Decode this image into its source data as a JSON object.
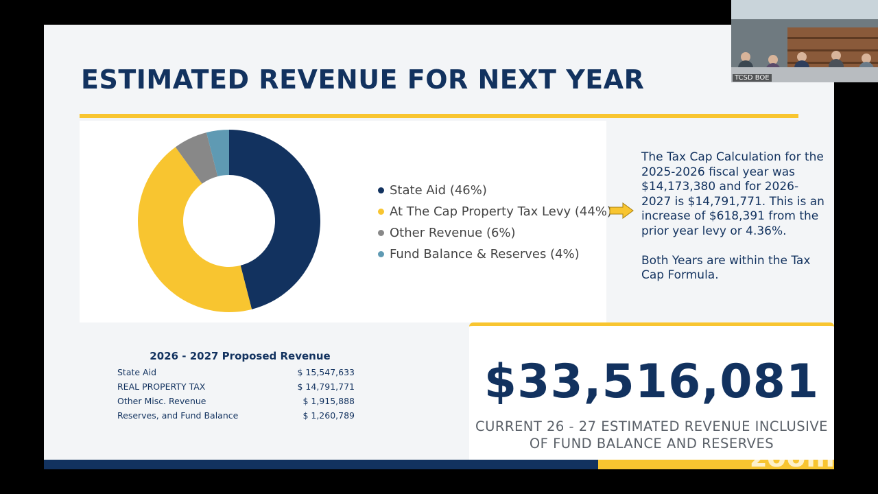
{
  "slide": {
    "title": "ESTIMATED REVENUE FOR NEXT YEAR",
    "colors": {
      "navy": "#12325f",
      "gold": "#f8c530",
      "gray": "#888888",
      "steel": "#5f9ab3"
    }
  },
  "chart_data": {
    "type": "pie",
    "variant": "donut",
    "legend_position": "right",
    "slices": [
      {
        "label": "State Aid (46%)",
        "value": 46,
        "color": "#12325f"
      },
      {
        "label": "At The Cap Property Tax Levy (44%)",
        "value": 44,
        "color": "#f8c530"
      },
      {
        "label": "Other Revenue (6%)",
        "value": 6,
        "color": "#888888"
      },
      {
        "label": "Fund Balance & Reserves (4%)",
        "value": 4,
        "color": "#5f9ab3"
      }
    ]
  },
  "note": {
    "paragraph1": "The Tax Cap Calculation for the 2025-2026 fiscal year was $14,173,380 and for 2026-2027 is $14,791,771. This is an increase of $618,391 from the prior year levy or 4.36%.",
    "paragraph2": "Both Years are within the Tax Cap Formula."
  },
  "revenue_table": {
    "title": "2026 - 2027 Proposed Revenue",
    "rows": [
      {
        "label": "State Aid",
        "amount": "$ 15,547,633"
      },
      {
        "label": "REAL PROPERTY TAX",
        "amount": "$ 14,791,771"
      },
      {
        "label": "Other Misc. Revenue",
        "amount": "$ 1,915,888"
      },
      {
        "label": "Reserves, and Fund Balance",
        "amount": "$ 1,260,789"
      }
    ]
  },
  "total": {
    "amount": "$33,516,081",
    "caption_line1": "CURRENT 26 - 27 ESTIMATED REVENUE INCLUSIVE",
    "caption_line2": "OF FUND BALANCE AND RESERVES"
  },
  "video": {
    "participant_label": "TCSD BOE"
  },
  "watermark": "zoom"
}
